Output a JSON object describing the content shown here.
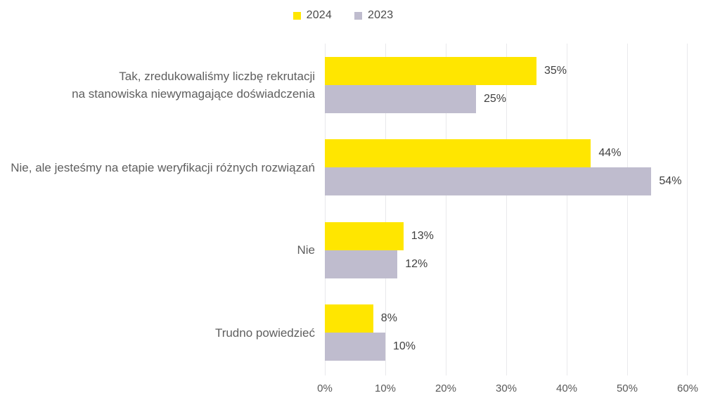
{
  "chart_data": {
    "type": "bar",
    "orientation": "horizontal",
    "title": "",
    "xlabel": "",
    "ylabel": "",
    "categories": [
      {
        "lines": [
          "Tak, zredukowaliśmy liczbę rekrutacji",
          "na stanowiska niewymagające doświadczenia"
        ]
      },
      {
        "lines": [
          "Nie, ale jesteśmy na etapie weryfikacji różnych rozwiązań"
        ]
      },
      {
        "lines": [
          "Nie"
        ]
      },
      {
        "lines": [
          "Trudno powiedzieć"
        ]
      }
    ],
    "series": [
      {
        "name": "2024",
        "color": "#FFE600",
        "values": [
          35,
          44,
          13,
          8
        ],
        "labels": [
          "35%",
          "44%",
          "13%",
          "8%"
        ]
      },
      {
        "name": "2023",
        "color": "#BFBCCE",
        "values": [
          25,
          54,
          12,
          10
        ],
        "labels": [
          "25%",
          "54%",
          "12%",
          "10%"
        ]
      }
    ],
    "xlim": [
      0,
      60
    ],
    "x_ticks": [
      "0%",
      "10%",
      "20%",
      "30%",
      "40%",
      "50%",
      "60%"
    ],
    "grid": "vertical",
    "legend_position": "top-center"
  },
  "colors": {
    "background": "#FFFFFF",
    "gridline": "#E9E9EC",
    "category_text": "#5F5F5F",
    "value_text": "#3F3F3F",
    "axis_text": "#595959",
    "series_2024": "#FFE600",
    "series_2023": "#BFBCCE"
  }
}
